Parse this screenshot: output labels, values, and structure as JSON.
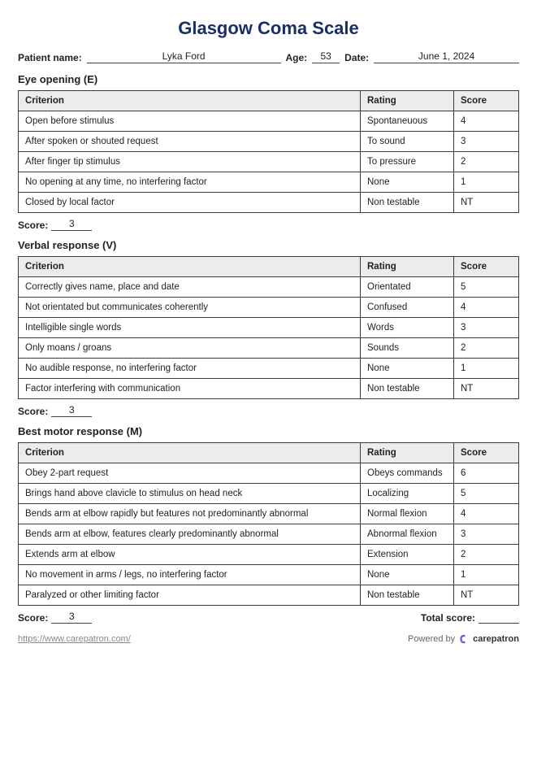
{
  "title": "Glasgow Coma Scale",
  "patient": {
    "name_label": "Patient name:",
    "name": "Lyka Ford",
    "age_label": "Age:",
    "age": "53",
    "date_label": "Date:",
    "date": "June 1, 2024"
  },
  "columns": {
    "criterion": "Criterion",
    "rating": "Rating",
    "score": "Score"
  },
  "score_label": "Score:",
  "total_score_label": "Total score:",
  "total_score_value": "",
  "sections": [
    {
      "title": "Eye opening (E)",
      "score": "3",
      "rows": [
        {
          "criterion": "Open before stimulus",
          "rating": "Spontaneuous",
          "score": "4"
        },
        {
          "criterion": "After spoken or shouted request",
          "rating": "To sound",
          "score": "3"
        },
        {
          "criterion": "After finger tip stimulus",
          "rating": "To pressure",
          "score": "2"
        },
        {
          "criterion": "No opening at any time, no interfering factor",
          "rating": "None",
          "score": "1"
        },
        {
          "criterion": "Closed by local factor",
          "rating": "Non testable",
          "score": "NT"
        }
      ]
    },
    {
      "title": "Verbal response (V)",
      "score": "3",
      "rows": [
        {
          "criterion": "Correctly gives name, place and date",
          "rating": "Orientated",
          "score": "5"
        },
        {
          "criterion": "Not orientated but communicates coherently",
          "rating": "Confused",
          "score": "4"
        },
        {
          "criterion": "Intelligible single words",
          "rating": "Words",
          "score": "3"
        },
        {
          "criterion": "Only moans / groans",
          "rating": "Sounds",
          "score": "2"
        },
        {
          "criterion": "No audible response, no interfering factor",
          "rating": "None",
          "score": "1"
        },
        {
          "criterion": "Factor interfering with communication",
          "rating": "Non testable",
          "score": "NT"
        }
      ]
    },
    {
      "title": "Best motor response (M)",
      "score": "3",
      "rows": [
        {
          "criterion": "Obey 2-part request",
          "rating": "Obeys commands",
          "score": "6"
        },
        {
          "criterion": "Brings hand above clavicle to stimulus on head neck",
          "rating": "Localizing",
          "score": "5"
        },
        {
          "criterion": "Bends arm at elbow rapidly but features not predominantly abnormal",
          "rating": "Normal flexion",
          "score": "4"
        },
        {
          "criterion": "Bends arm at elbow, features clearly predominantly abnormal",
          "rating": "Abnormal flexion",
          "score": "3"
        },
        {
          "criterion": "Extends arm at elbow",
          "rating": "Extension",
          "score": "2"
        },
        {
          "criterion": "No movement in arms / legs, no interfering factor",
          "rating": "None",
          "score": "1"
        },
        {
          "criterion": "Paralyzed or other limiting factor",
          "rating": "Non testable",
          "score": "NT"
        }
      ],
      "show_total": true
    }
  ],
  "footer": {
    "url": "https://www.carepatron.com/",
    "powered_by": "Powered by",
    "brand": "carepatron",
    "brand_color": "#6b5dd3"
  }
}
